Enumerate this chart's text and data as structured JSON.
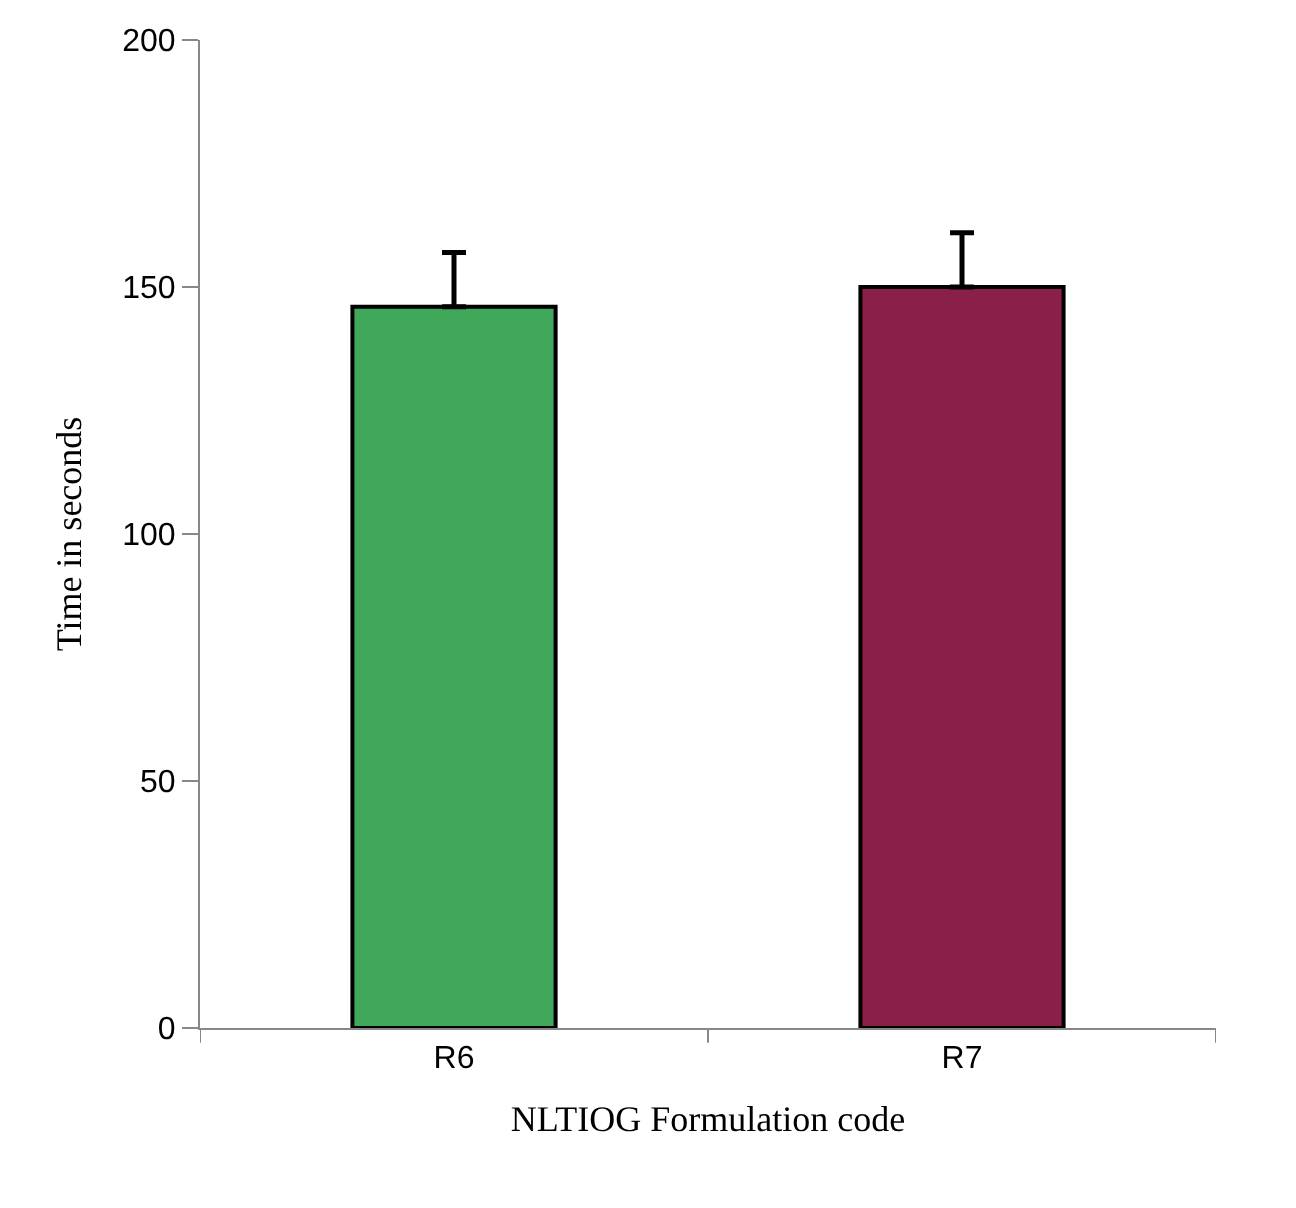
{
  "chart_data": {
    "type": "bar",
    "xlabel": "NLTIOG Formulation code",
    "ylabel": "Time in seconds",
    "categories": [
      "R6",
      "R7"
    ],
    "values": [
      146,
      150
    ],
    "colors": [
      "#3fa85a",
      "#8a1f4a"
    ],
    "errors": [
      [
        146,
        157
      ],
      [
        150,
        161
      ]
    ],
    "ylim": [
      0,
      200
    ],
    "yticks": [
      0,
      50,
      100,
      150,
      200
    ]
  }
}
